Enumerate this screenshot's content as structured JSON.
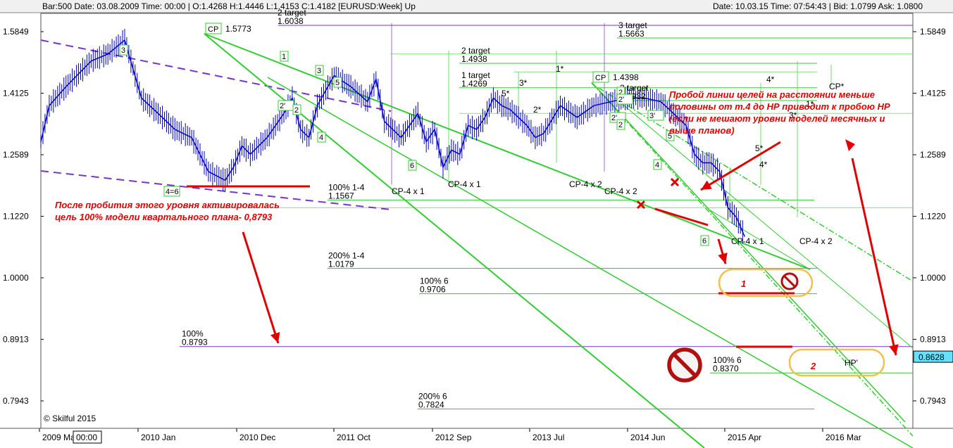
{
  "status_bar": {
    "left": "Bar:500  Date: 03.08.2009  Time: 00:00  | O:1.4268  H:1.4446  L:1.4153  C:1.4182   [EURUSD:Week]  Up",
    "right": "Date: 10.03.15  Time: 07:54:43  | Bid: 1.0799  Ask: 1.0800"
  },
  "colors": {
    "candle": "#0000cc",
    "green_line": "#33cc33",
    "purple": "#7733cc",
    "red": "#e00000",
    "highlight_price_bg": "#66e0ff"
  },
  "chart_data": {
    "type": "line",
    "instrument": "EURUSD:Week",
    "y_ticks": [
      "1.5849",
      "1.4125",
      "1.2589",
      "1.1220",
      "1.0000",
      "0.8913",
      "0.7943"
    ],
    "ylim": [
      0.72,
      1.66
    ],
    "log_scale": true,
    "x_ticks": [
      "2009 Mar",
      "2010 Jan",
      "2010 Dec",
      "2011 Oct",
      "2012 Sep",
      "2013 Jul",
      "2014 Jun",
      "2015 Apr",
      "2016 Mar"
    ],
    "x_cursor_label": "00:00",
    "current_price_label": "0.8628",
    "price_series": [
      [
        "2008-03",
        1.29
      ],
      [
        "2008-04",
        1.38
      ],
      [
        "2008-06",
        1.43
      ],
      [
        "2008-09",
        1.5
      ],
      [
        "2008-11",
        1.52
      ],
      [
        "2009-01",
        1.56
      ],
      [
        "2009-03",
        1.4
      ],
      [
        "2009-05",
        1.36
      ],
      [
        "2009-07",
        1.32
      ],
      [
        "2009-09",
        1.3
      ],
      [
        "2009-11",
        1.22
      ],
      [
        "2010-01",
        1.2
      ],
      [
        "2010-02",
        1.23
      ],
      [
        "2010-03",
        1.28
      ],
      [
        "2010-04",
        1.26
      ],
      [
        "2010-06",
        1.3
      ],
      [
        "2010-08",
        1.36
      ],
      [
        "2010-09",
        1.4
      ],
      [
        "2010-10",
        1.32
      ],
      [
        "2010-11",
        1.3
      ],
      [
        "2010-12",
        1.38
      ],
      [
        "2011-01",
        1.42
      ],
      [
        "2011-02",
        1.46
      ],
      [
        "2011-04",
        1.43
      ],
      [
        "2011-06",
        1.39
      ],
      [
        "2011-07",
        1.45
      ],
      [
        "2011-08",
        1.34
      ],
      [
        "2011-09",
        1.32
      ],
      [
        "2011-10",
        1.3
      ],
      [
        "2011-12",
        1.36
      ],
      [
        "2012-01",
        1.29
      ],
      [
        "2012-02",
        1.32
      ],
      [
        "2012-03",
        1.23
      ],
      [
        "2012-04",
        1.27
      ],
      [
        "2012-05",
        1.26
      ],
      [
        "2012-06",
        1.33
      ],
      [
        "2012-07",
        1.32
      ],
      [
        "2012-08",
        1.35
      ],
      [
        "2012-09",
        1.4
      ],
      [
        "2012-10",
        1.38
      ],
      [
        "2012-11",
        1.37
      ],
      [
        "2013-01",
        1.33
      ],
      [
        "2013-02",
        1.3
      ],
      [
        "2013-03",
        1.31
      ],
      [
        "2013-05",
        1.38
      ],
      [
        "2013-07",
        1.35
      ],
      [
        "2013-09",
        1.38
      ],
      [
        "2013-11",
        1.39
      ],
      [
        "2014-01",
        1.4
      ],
      [
        "2014-03",
        1.4
      ],
      [
        "2014-05",
        1.39
      ],
      [
        "2014-06",
        1.37
      ],
      [
        "2014-08",
        1.33
      ],
      [
        "2014-09",
        1.26
      ],
      [
        "2014-10",
        1.24
      ],
      [
        "2014-11",
        1.24
      ],
      [
        "2014-12",
        1.22
      ],
      [
        "2015-01",
        1.14
      ],
      [
        "2015-02",
        1.12
      ],
      [
        "2015-03",
        1.08
      ]
    ],
    "levels": [
      {
        "label": "100%",
        "value": "0.8793"
      },
      {
        "label": "100% 1-4",
        "value": "1.1567"
      },
      {
        "label": "200% 1-4",
        "value": "1.0179"
      },
      {
        "label": "100% 6",
        "value": "0.9706"
      },
      {
        "label": "100% 6",
        "value": "0.8370"
      },
      {
        "label": "200% 6",
        "value": "0.7824"
      },
      {
        "label": "2 target",
        "value": "1.6038"
      },
      {
        "label": "2 target",
        "value": "1.4938"
      },
      {
        "label": "1 target",
        "value": "1.4269"
      },
      {
        "label": "3 target",
        "value": "1.5663"
      },
      {
        "label": "2 target",
        "value": "1.3932"
      }
    ],
    "cp_labels": [
      {
        "label": "CP",
        "value": "1.5773"
      },
      {
        "label": "CP",
        "value": "1.4398"
      }
    ],
    "cp_texts": [
      "CP-4 x 1",
      "CP-4 x 1",
      "CP-4 x 2",
      "CP-4 x 2",
      "CP-4 x 1",
      "CP-4 x 2",
      "CP*",
      "HP'"
    ],
    "wave_labels": [
      "3",
      "4=6",
      "1",
      "2'",
      "3",
      "2",
      "5",
      "4",
      "6",
      "2'",
      "2",
      "3'",
      "5",
      "4",
      "6",
      "2",
      "2'"
    ],
    "star_labels": [
      "3*",
      "5*",
      "1*",
      "2*",
      "3*",
      "1*",
      "5*",
      "4*",
      "4*"
    ],
    "annotations": {
      "left_lines": [
        "После пробития этого уровня активировалась",
        "цель 100% модели квартального плана-  0,8793"
      ],
      "right_lines": [
        "Пробой линии целей на расстоянии меньше",
        "половины от т.4 до НР приводит к пробою НР",
        "(если не мешают уровни моделей месячных и",
        "выше планов)"
      ],
      "scenario_1": "1",
      "scenario_2": "2",
      "copyright": "© Skilful 2015"
    }
  }
}
